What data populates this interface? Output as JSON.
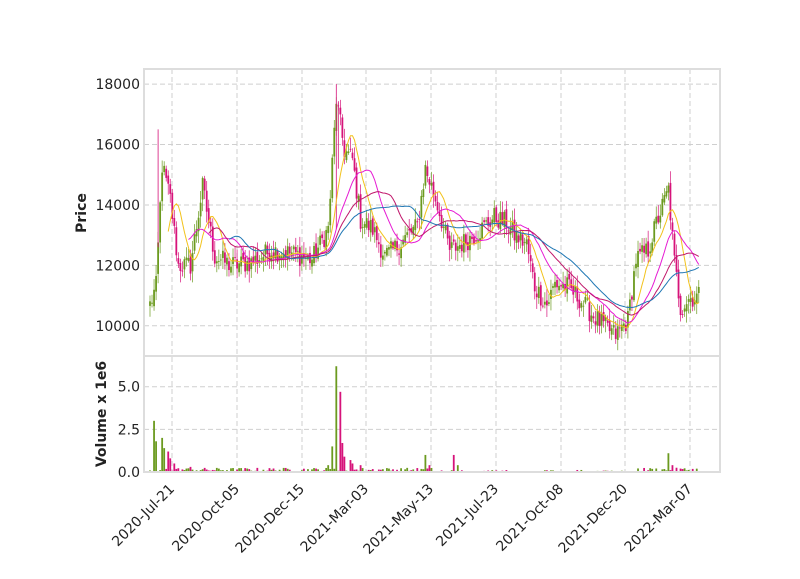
{
  "chart_data": {
    "type": "candlestick",
    "ylabel_price": "Price",
    "ylabel_volume": "Volume x 1e6",
    "price_ylim": [
      9000,
      18500
    ],
    "price_ticks": [
      "10000",
      "12000",
      "14000",
      "16000",
      "18000"
    ],
    "volume_ylim": [
      0,
      6.8
    ],
    "volume_ticks": [
      "0.0",
      "2.5",
      "5.0"
    ],
    "x_tick_labels": [
      "2020-Jul-21",
      "2020-Oct-05",
      "2020-Dec-15",
      "2021-Mar-03",
      "2021-May-13",
      "2021-Jul-23",
      "2021-Oct-08",
      "2021-Dec-20",
      "2022-Mar-07"
    ],
    "grid": true,
    "colors": {
      "up": "#6b9a1f",
      "down": "#d6137a",
      "ma_short": "#f2c21b",
      "ma_mid": "#e61bd3",
      "ma_long1": "#c0186b",
      "ma_long2": "#1f77b4",
      "grid": "#cfcfcf",
      "frame": "#dddddd"
    },
    "price_anchors": [
      [
        0,
        10700
      ],
      [
        3,
        11300
      ],
      [
        6,
        15300
      ],
      [
        10,
        14200
      ],
      [
        14,
        12000
      ],
      [
        20,
        12000
      ],
      [
        26,
        14600
      ],
      [
        32,
        12300
      ],
      [
        40,
        12000
      ],
      [
        50,
        12100
      ],
      [
        60,
        12500
      ],
      [
        70,
        12400
      ],
      [
        80,
        12200
      ],
      [
        88,
        13200
      ],
      [
        92,
        17500
      ],
      [
        96,
        15800
      ],
      [
        100,
        15500
      ],
      [
        104,
        13500
      ],
      [
        110,
        13200
      ],
      [
        116,
        12300
      ],
      [
        120,
        12500
      ],
      [
        126,
        12900
      ],
      [
        132,
        13300
      ],
      [
        136,
        15200
      ],
      [
        142,
        14000
      ],
      [
        148,
        12500
      ],
      [
        156,
        12800
      ],
      [
        162,
        13100
      ],
      [
        170,
        13600
      ],
      [
        176,
        13400
      ],
      [
        180,
        13000
      ],
      [
        186,
        12700
      ],
      [
        190,
        11300
      ],
      [
        196,
        10700
      ],
      [
        200,
        11400
      ],
      [
        206,
        11300
      ],
      [
        212,
        10900
      ],
      [
        218,
        10400
      ],
      [
        224,
        10000
      ],
      [
        230,
        9700
      ],
      [
        236,
        10200
      ],
      [
        240,
        12200
      ],
      [
        246,
        12500
      ],
      [
        250,
        13400
      ],
      [
        256,
        14500
      ],
      [
        259,
        12100
      ],
      [
        262,
        10600
      ],
      [
        266,
        10900
      ],
      [
        271,
        11000
      ]
    ],
    "volume_spikes": [
      [
        2,
        3.0
      ],
      [
        3,
        1.8
      ],
      [
        6,
        2.0
      ],
      [
        7,
        1.4
      ],
      [
        9,
        1.2
      ],
      [
        10,
        0.8
      ],
      [
        12,
        0.5
      ],
      [
        20,
        0.3
      ],
      [
        88,
        0.4
      ],
      [
        90,
        1.5
      ],
      [
        92,
        6.2
      ],
      [
        94,
        4.7
      ],
      [
        95,
        1.7
      ],
      [
        96,
        0.9
      ],
      [
        99,
        0.7
      ],
      [
        100,
        0.5
      ],
      [
        104,
        0.4
      ],
      [
        136,
        1.0
      ],
      [
        138,
        0.4
      ],
      [
        150,
        1.0
      ],
      [
        152,
        0.4
      ],
      [
        256,
        1.1
      ],
      [
        258,
        0.4
      ]
    ]
  }
}
